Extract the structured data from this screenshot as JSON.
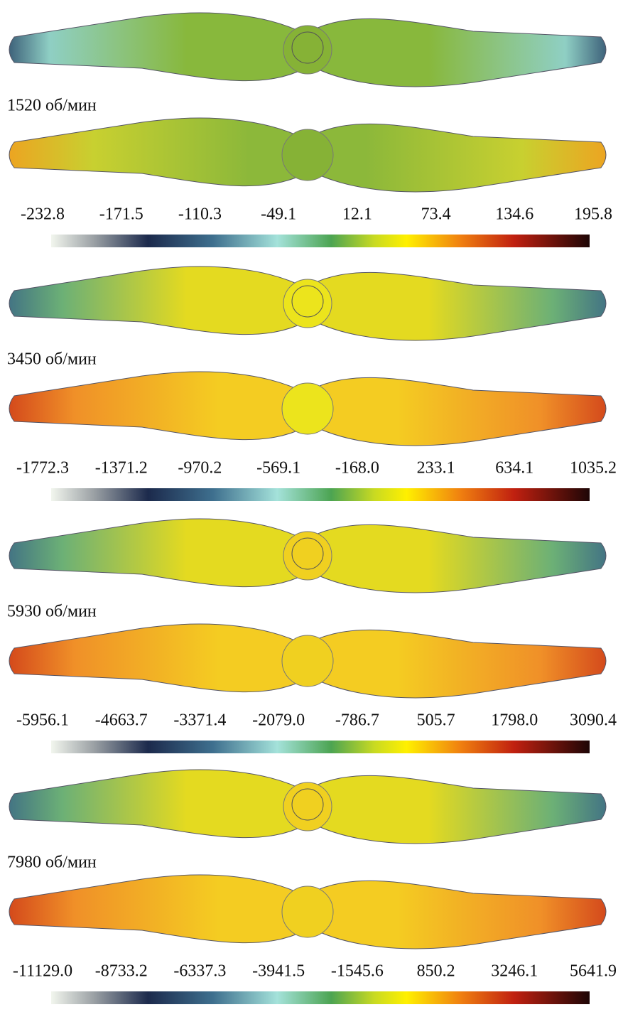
{
  "panels": [
    {
      "label": "1520 об/мин",
      "scale": {
        "ticks": [
          "-232.8",
          "-171.5",
          "-110.3",
          "-49.1",
          "12.1",
          "73.4",
          "134.6",
          "195.8"
        ]
      }
    },
    {
      "label": "3450 об/мин",
      "scale": {
        "ticks": [
          "-1772.3",
          "-1371.2",
          "-970.2",
          "-569.1",
          "-168.0",
          "233.1",
          "634.1",
          "1035.2"
        ]
      }
    },
    {
      "label": "5930 об/мин",
      "scale": {
        "ticks": [
          "-5956.1",
          "-4663.7",
          "-3371.4",
          "-2079.0",
          "-786.7",
          "505.7",
          "1798.0",
          "3090.4"
        ]
      }
    },
    {
      "label": "7980 об/мин",
      "scale": {
        "ticks": [
          "-11129.0",
          "-8733.2",
          "-6337.3",
          "-3941.5",
          "-1545.6",
          "850.2",
          "3246.1",
          "5641.9"
        ]
      }
    }
  ]
}
